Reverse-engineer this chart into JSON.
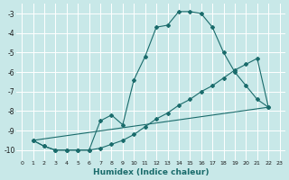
{
  "xlabel": "Humidex (Indice chaleur)",
  "bg_color": "#c8e8e8",
  "grid_color": "#ffffff",
  "line_color": "#1a6b6b",
  "xlim": [
    -0.5,
    23.5
  ],
  "ylim": [
    -10.5,
    -2.5
  ],
  "yticks": [
    -10,
    -9,
    -8,
    -7,
    -6,
    -5,
    -4,
    -3
  ],
  "xticks": [
    0,
    1,
    2,
    3,
    4,
    5,
    6,
    7,
    8,
    9,
    10,
    11,
    12,
    13,
    14,
    15,
    16,
    17,
    18,
    19,
    20,
    21,
    22,
    23
  ],
  "line1_x": [
    1,
    2,
    3,
    4,
    5,
    6,
    7,
    8,
    9,
    10,
    11,
    12,
    13,
    14,
    15,
    16,
    17,
    18,
    19,
    20,
    21,
    22
  ],
  "line1_y": [
    -9.5,
    -9.8,
    -10.0,
    -10.0,
    -10.0,
    -10.0,
    -8.5,
    -8.2,
    -8.7,
    -6.4,
    -5.2,
    -3.7,
    -3.6,
    -2.9,
    -2.9,
    -3.0,
    -3.7,
    -5.0,
    -6.0,
    -6.7,
    -7.4,
    -7.8
  ],
  "line2_x": [
    1,
    2,
    3,
    4,
    5,
    6,
    7,
    8,
    9,
    10,
    11,
    12,
    13,
    14,
    15,
    16,
    17,
    18,
    19,
    20,
    21,
    22
  ],
  "line2_y": [
    -9.5,
    -9.8,
    -10.0,
    -10.0,
    -10.0,
    -10.0,
    -9.9,
    -9.7,
    -9.5,
    -9.2,
    -8.8,
    -8.4,
    -8.1,
    -7.7,
    -7.4,
    -7.0,
    -6.7,
    -6.3,
    -5.9,
    -5.6,
    -5.3,
    -7.8
  ],
  "line3_x": [
    1,
    22
  ],
  "line3_y": [
    -9.5,
    -7.8
  ]
}
